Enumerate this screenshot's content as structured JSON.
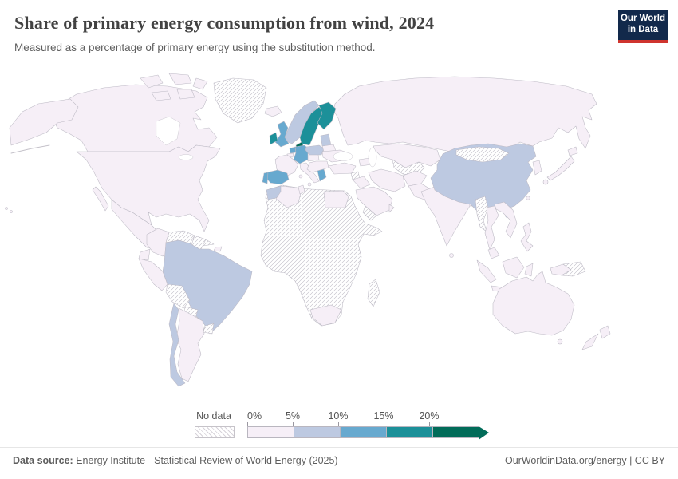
{
  "header": {
    "title": "Share of primary energy consumption from wind, 2024",
    "subtitle": "Measured as a percentage of primary energy using the substitution method.",
    "logo": {
      "line1": "Our World",
      "line2": "in Data"
    }
  },
  "brand": {
    "navy": "#12294b",
    "red": "#cf342e"
  },
  "footer": {
    "source_label": "Data source:",
    "source_text": " Energy Institute - Statistical Review of World Energy (2025)",
    "right_text": "OurWorldinData.org/energy | CC BY"
  },
  "chart_data": {
    "type": "choropleth",
    "title": "Share of primary energy consumption from wind, 2024",
    "unit": "%",
    "legend": {
      "no_data_label": "No data",
      "ticks": [
        "0%",
        "5%",
        "10%",
        "15%",
        "20%"
      ],
      "bins": [
        {
          "range": "0-5%",
          "color": "#f6eff7"
        },
        {
          "range": "5-10%",
          "color": "#bdc9e1"
        },
        {
          "range": "10-15%",
          "color": "#67a9cf"
        },
        {
          "range": "15-20%",
          "color": "#1c9099"
        },
        {
          "range": "20%+",
          "color": "#016c59"
        }
      ]
    },
    "regions": [
      {
        "name": "United States",
        "bin": "0-5%"
      },
      {
        "name": "Canada",
        "bin": "0-5%"
      },
      {
        "name": "Mexico",
        "bin": "0-5%"
      },
      {
        "name": "Central America",
        "bin": "no-data"
      },
      {
        "name": "Cuba",
        "bin": "no-data"
      },
      {
        "name": "Dominican Republic",
        "bin": "0-5%"
      },
      {
        "name": "Greenland",
        "bin": "no-data"
      },
      {
        "name": "Colombia",
        "bin": "0-5%"
      },
      {
        "name": "Venezuela",
        "bin": "no-data"
      },
      {
        "name": "Guyanas",
        "bin": "no-data"
      },
      {
        "name": "Ecuador",
        "bin": "0-5%"
      },
      {
        "name": "Peru",
        "bin": "0-5%"
      },
      {
        "name": "Brazil",
        "bin": "5-10%"
      },
      {
        "name": "Bolivia",
        "bin": "no-data"
      },
      {
        "name": "Paraguay",
        "bin": "no-data"
      },
      {
        "name": "Uruguay",
        "bin": "no-data"
      },
      {
        "name": "Argentina",
        "bin": "0-5%"
      },
      {
        "name": "Chile",
        "bin": "5-10%"
      },
      {
        "name": "Iceland",
        "bin": "0-5%"
      },
      {
        "name": "Norway",
        "bin": "5-10%"
      },
      {
        "name": "Sweden",
        "bin": "15-20%"
      },
      {
        "name": "Finland",
        "bin": "15-20%"
      },
      {
        "name": "Denmark",
        "bin": "20%+"
      },
      {
        "name": "United Kingdom",
        "bin": "10-15%"
      },
      {
        "name": "Ireland",
        "bin": "15-20%"
      },
      {
        "name": "Netherlands",
        "bin": "10-15%"
      },
      {
        "name": "Belgium",
        "bin": "0-5%"
      },
      {
        "name": "Germany",
        "bin": "10-15%"
      },
      {
        "name": "France",
        "bin": "0-5%"
      },
      {
        "name": "Spain",
        "bin": "10-15%"
      },
      {
        "name": "Portugal",
        "bin": "10-15%"
      },
      {
        "name": "Italy",
        "bin": "0-5%"
      },
      {
        "name": "Austria-Czechia",
        "bin": "0-5%"
      },
      {
        "name": "Poland",
        "bin": "5-10%"
      },
      {
        "name": "Baltic states",
        "bin": "5-10%"
      },
      {
        "name": "Belarus",
        "bin": "0-5%"
      },
      {
        "name": "Ukraine",
        "bin": "0-5%"
      },
      {
        "name": "Balkans",
        "bin": "0-5%"
      },
      {
        "name": "Greece",
        "bin": "10-15%"
      },
      {
        "name": "Turkey",
        "bin": "0-5%"
      },
      {
        "name": "Russia",
        "bin": "0-5%"
      },
      {
        "name": "Kazakhstan",
        "bin": "0-5%"
      },
      {
        "name": "Caucasus",
        "bin": "0-5%"
      },
      {
        "name": "Turkmenistan-Uzbekistan",
        "bin": "no-data"
      },
      {
        "name": "Iran",
        "bin": "0-5%"
      },
      {
        "name": "Iraq",
        "bin": "0-5%"
      },
      {
        "name": "Syria",
        "bin": "no-data"
      },
      {
        "name": "Saudi Arabia",
        "bin": "0-5%"
      },
      {
        "name": "Yemen",
        "bin": "no-data"
      },
      {
        "name": "Oman",
        "bin": "0-5%"
      },
      {
        "name": "Afghanistan",
        "bin": "0-5%"
      },
      {
        "name": "Pakistan",
        "bin": "0-5%"
      },
      {
        "name": "India",
        "bin": "0-5%"
      },
      {
        "name": "Sri Lanka",
        "bin": "0-5%"
      },
      {
        "name": "Bangladesh",
        "bin": "0-5%"
      },
      {
        "name": "Myanmar",
        "bin": "no-data"
      },
      {
        "name": "Thailand",
        "bin": "0-5%"
      },
      {
        "name": "Vietnam",
        "bin": "0-5%"
      },
      {
        "name": "Malaysia",
        "bin": "0-5%"
      },
      {
        "name": "Indonesia",
        "bin": "0-5%"
      },
      {
        "name": "Philippines",
        "bin": "0-5%"
      },
      {
        "name": "Papua New Guinea",
        "bin": "no-data"
      },
      {
        "name": "Mongolia",
        "bin": "no-data"
      },
      {
        "name": "China",
        "bin": "5-10%"
      },
      {
        "name": "South Korea",
        "bin": "0-5%"
      },
      {
        "name": "Japan",
        "bin": "0-5%"
      },
      {
        "name": "Taiwan",
        "bin": "0-5%"
      },
      {
        "name": "Australia",
        "bin": "0-5%"
      },
      {
        "name": "New Zealand",
        "bin": "0-5%"
      },
      {
        "name": "Morocco",
        "bin": "5-10%"
      },
      {
        "name": "Algeria",
        "bin": "0-5%"
      },
      {
        "name": "Tunisia",
        "bin": "0-5%"
      },
      {
        "name": "Egypt",
        "bin": "0-5%"
      },
      {
        "name": "South Africa",
        "bin": "0-5%"
      },
      {
        "name": "Madagascar",
        "bin": "no-data"
      },
      {
        "name": "Africa (most countries)",
        "bin": "no-data"
      },
      {
        "name": "Hawaii",
        "bin": "0-5%"
      }
    ]
  }
}
